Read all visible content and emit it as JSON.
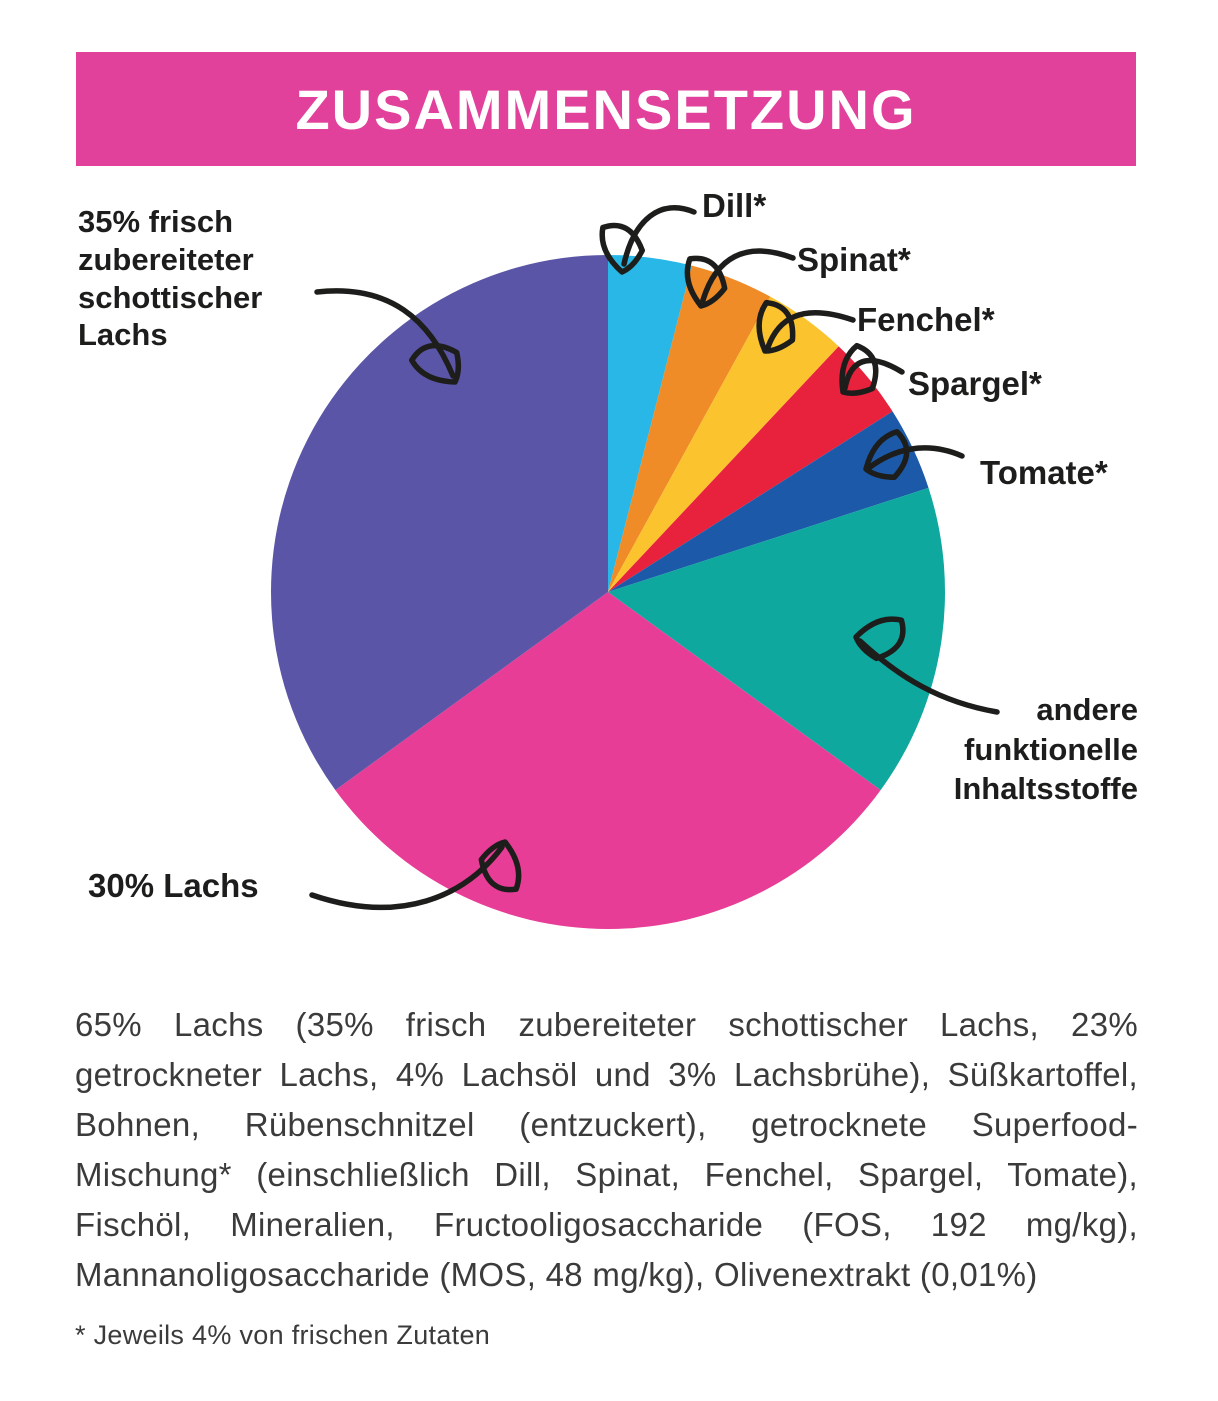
{
  "header": {
    "title": "ZUSAMMENSETZUNG"
  },
  "chart_data": {
    "type": "pie",
    "title": "ZUSAMMENSETZUNG",
    "unit": "percent",
    "start_angle_deg": -90,
    "direction": "clockwise",
    "legend_position": "callout-labels",
    "slices": [
      {
        "label": "Dill*",
        "value": 4,
        "color": "#29B7E8"
      },
      {
        "label": "Spinat*",
        "value": 4,
        "color": "#F08C27"
      },
      {
        "label": "Fenchel*",
        "value": 4,
        "color": "#FBC42F"
      },
      {
        "label": "Spargel*",
        "value": 4,
        "color": "#E8213C"
      },
      {
        "label": "Tomate*",
        "value": 4,
        "color": "#1C5AA9"
      },
      {
        "label": "andere funktionelle Inhaltsstoffe",
        "value": 15,
        "color": "#0EA89F"
      },
      {
        "label": "30% Lachs",
        "value": 30,
        "color": "#E73D96"
      },
      {
        "label": "35% frisch zubereiteter schottischer Lachs",
        "value": 35,
        "color": "#5A55A6"
      }
    ]
  },
  "composition": {
    "paragraph": "65% Lachs (35% frisch zubereiteter schottischer Lachs, 23% getrockneter Lachs, 4% Lachsöl und 3% Lachsbrühe), Süßkartoffel, Bohnen, Rübenschnitzel (entzuckert), getrocknete Superfood-Mischung* (einschließlich Dill, Spinat, Fenchel, Spargel, Tomate), Fischöl, Mineralien, Fructooligosaccharide (FOS, 192 mg/kg), Mannanoligosaccharide (MOS, 48 mg/kg), Olivenextrakt (0,01%)",
    "footnote": "* Jeweils 4% von frischen Zutaten"
  },
  "colors": {
    "banner": "#E2419B",
    "text": "#1D1D1B",
    "arrow": "#1D1D1B",
    "background": "#FFFFFF"
  }
}
